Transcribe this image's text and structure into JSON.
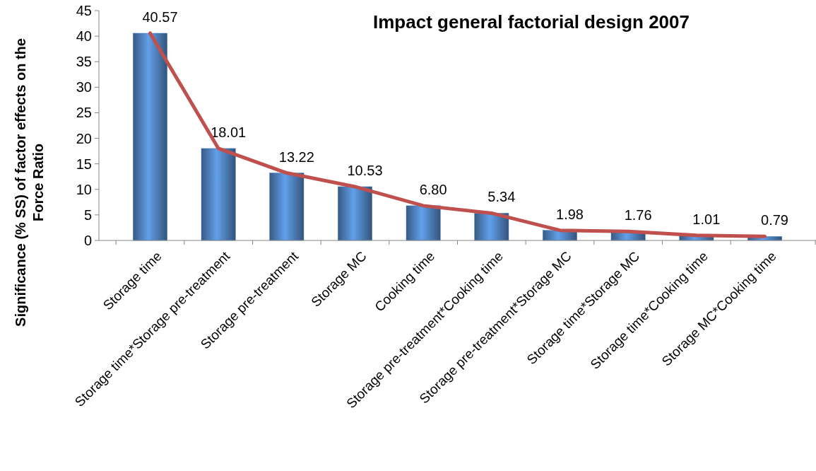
{
  "chart_data": {
    "type": "bar",
    "title": "Impact general factorial design 2007",
    "ylabel": "Significance (% SS) of factor effects on the Force Ratio",
    "categories": [
      "Storage time",
      "Storage time*Storage pre-treatment",
      "Storage pre-treatment",
      "Storage MC",
      "Cooking time",
      "Storage pre-treatment*Cooking time",
      "Storage pre-treatment*Storage MC",
      "Storage time*Storage MC",
      "Storage time*Cooking time",
      "Storage MC*Cooking time"
    ],
    "series": [
      {
        "color": "#4f81bd",
        "values": [
          40.57,
          18.01,
          13.22,
          10.53,
          6.8,
          5.34,
          1.98,
          1.76,
          1.01,
          0.79
        ],
        "value_labels": [
          "40.57",
          "18.01",
          "13.22",
          "10.53",
          "6.80",
          "5.34",
          "1.98",
          "1.76",
          "1.01",
          "0.79"
        ]
      },
      {
        "type": "line",
        "color": "#c0504d",
        "values": [
          40.57,
          18.01,
          13.22,
          10.53,
          6.8,
          5.34,
          1.98,
          1.76,
          1.01,
          0.79
        ]
      }
    ],
    "ylim": [
      0,
      45
    ],
    "yticks": [
      0,
      5,
      10,
      15,
      20,
      25,
      30,
      35,
      40,
      45
    ]
  }
}
